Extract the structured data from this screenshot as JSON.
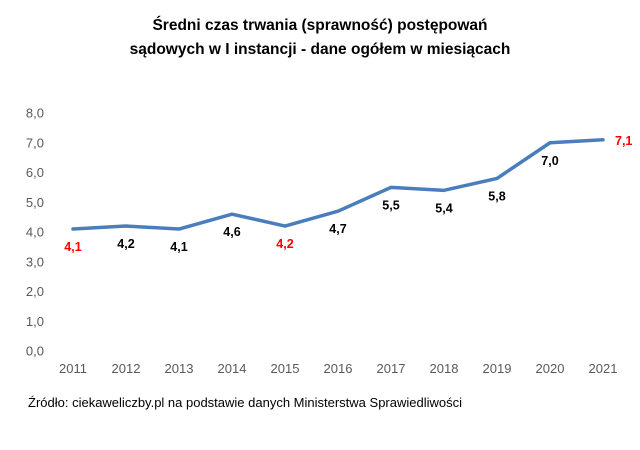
{
  "title": {
    "line1": "Średni czas trwania (sprawność) postępowań",
    "line2": "sądowych w I instancji - dane ogółem w miesiącach"
  },
  "source": "Źródło: ciekaweliczby.pl na podstawie danych Ministerstwa Sprawiedliwości",
  "chart_data": {
    "type": "line",
    "title": "Średni czas trwania (sprawność) postępowań sądowych w I instancji - dane ogółem w miesiącach",
    "categories": [
      "2011",
      "2012",
      "2013",
      "2014",
      "2015",
      "2016",
      "2017",
      "2018",
      "2019",
      "2020",
      "2021"
    ],
    "values": [
      4.1,
      4.2,
      4.1,
      4.6,
      4.2,
      4.7,
      5.5,
      5.4,
      5.8,
      7.0,
      7.1
    ],
    "labels": [
      "4,1",
      "4,2",
      "4,1",
      "4,6",
      "4,2",
      "4,7",
      "5,5",
      "5,4",
      "5,8",
      "7,0",
      "7,1"
    ],
    "highlight_indices": [
      0,
      4,
      10
    ],
    "xlabel": "",
    "ylabel": "",
    "ylim": [
      0,
      8
    ],
    "ytick_step": 1,
    "ytick_labels": [
      "0,0",
      "1,0",
      "2,0",
      "3,0",
      "4,0",
      "5,0",
      "6,0",
      "7,0",
      "8,0"
    ],
    "grid": false,
    "legend": false,
    "line_color": "#4a7ebb",
    "label_color": "#000000",
    "highlight_color": "#ff0000"
  }
}
